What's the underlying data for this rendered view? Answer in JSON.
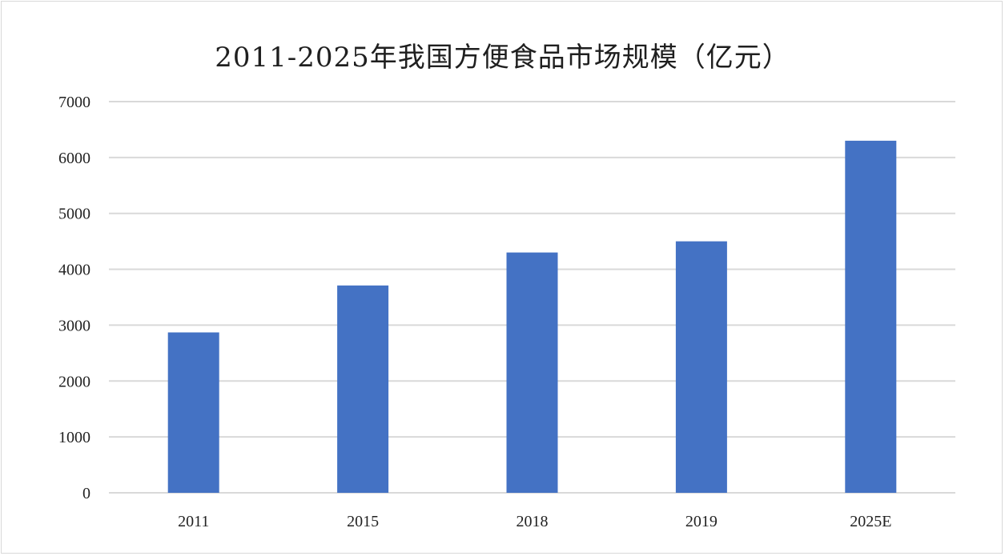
{
  "chart_data": {
    "type": "bar",
    "title": "2011-2025年我国方便食品市场规模（亿元）",
    "categories": [
      "2011",
      "2015",
      "2018",
      "2019",
      "2025E"
    ],
    "values": [
      2870,
      3710,
      4300,
      4500,
      6300
    ],
    "ylim": [
      0,
      7000
    ],
    "yticks": [
      0,
      1000,
      2000,
      3000,
      4000,
      5000,
      6000,
      7000
    ],
    "xlabel": "",
    "ylabel": "",
    "grid": true,
    "legend": "none",
    "bar_color": "#4472C4",
    "grid_color": "#d9d9d9"
  }
}
